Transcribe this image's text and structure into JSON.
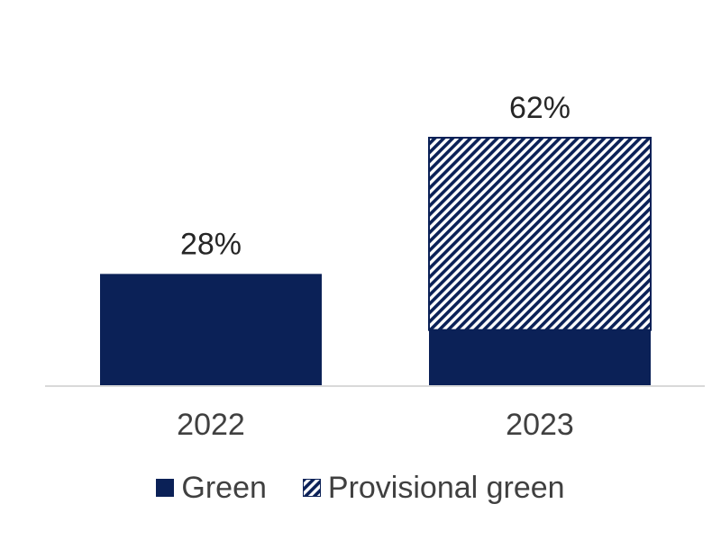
{
  "chart_data": {
    "type": "bar",
    "stacked": true,
    "categories": [
      "2022",
      "2023"
    ],
    "series": [
      {
        "name": "Green",
        "values": [
          28,
          14
        ],
        "color": "#0b2157",
        "pattern": "solid"
      },
      {
        "name": "Provisional green",
        "values": [
          0,
          48
        ],
        "color": "#0b2157",
        "pattern": "diagonal-hatch"
      }
    ],
    "totals": [
      28,
      62
    ],
    "data_labels": [
      "28%",
      "62%"
    ],
    "ylim": [
      0,
      62
    ],
    "gridlines": false,
    "legend_position": "bottom"
  }
}
